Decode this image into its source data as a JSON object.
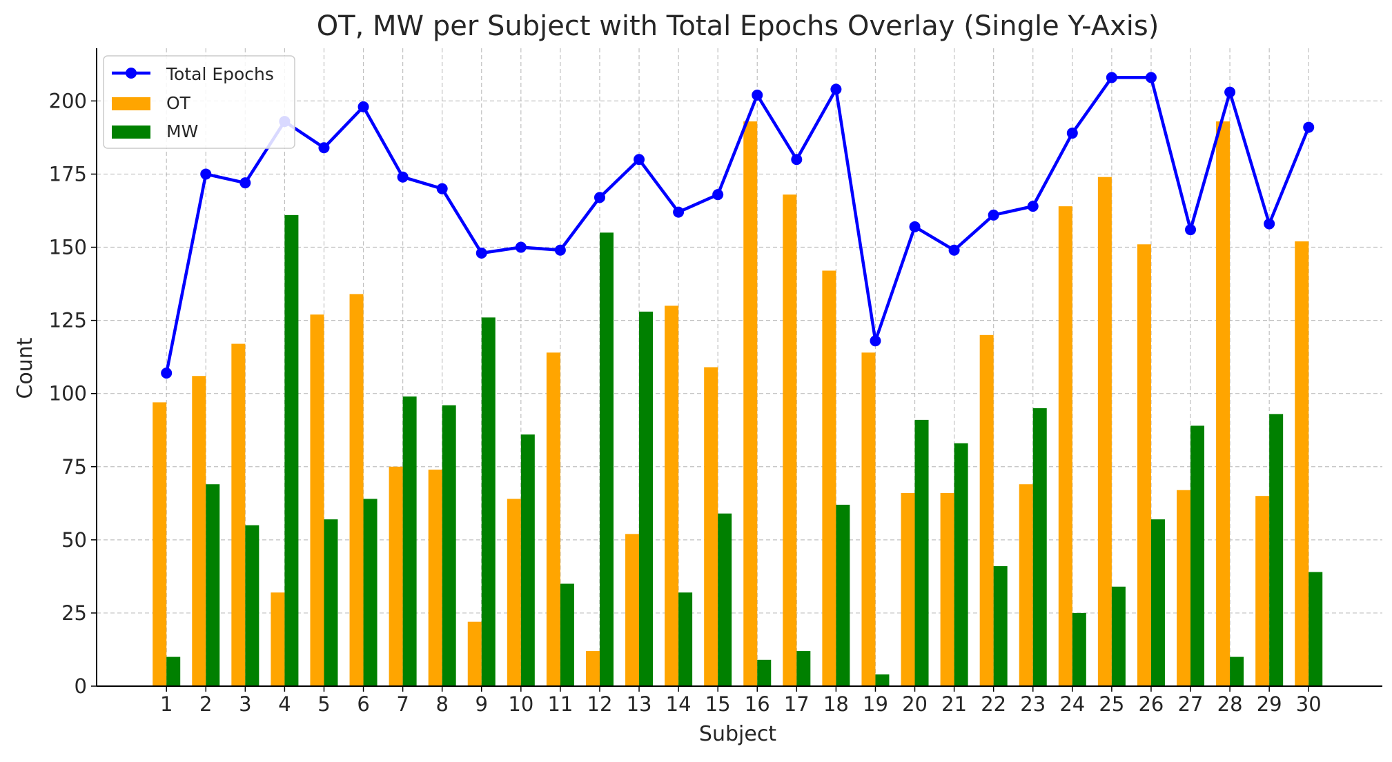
{
  "chart_data": {
    "type": "bar",
    "title": "OT, MW per Subject with Total Epochs Overlay (Single Y-Axis)",
    "xlabel": "Subject",
    "ylabel": "Count",
    "categories": [
      "1",
      "2",
      "3",
      "4",
      "5",
      "6",
      "7",
      "8",
      "9",
      "10",
      "11",
      "12",
      "13",
      "14",
      "15",
      "16",
      "17",
      "18",
      "19",
      "20",
      "21",
      "22",
      "23",
      "24",
      "25",
      "26",
      "27",
      "28",
      "29",
      "30"
    ],
    "ylim": [
      0,
      218
    ],
    "yticks": [
      0,
      25,
      50,
      75,
      100,
      125,
      150,
      175,
      200
    ],
    "grid": true,
    "legend_position": "top-left",
    "series": [
      {
        "name": "OT",
        "kind": "bar",
        "color": "#FFA500",
        "values": [
          97,
          106,
          117,
          32,
          127,
          134,
          75,
          74,
          22,
          64,
          114,
          12,
          52,
          130,
          109,
          193,
          168,
          142,
          114,
          66,
          66,
          120,
          69,
          164,
          174,
          151,
          67,
          193,
          65,
          152
        ]
      },
      {
        "name": "MW",
        "kind": "bar",
        "color": "#008000",
        "values": [
          10,
          69,
          55,
          161,
          57,
          64,
          99,
          96,
          126,
          86,
          35,
          155,
          128,
          32,
          59,
          9,
          12,
          62,
          4,
          91,
          83,
          41,
          95,
          25,
          34,
          57,
          89,
          10,
          93,
          39
        ]
      },
      {
        "name": "Total Epochs",
        "kind": "line",
        "color": "#0000FF",
        "values": [
          107,
          175,
          172,
          193,
          184,
          198,
          174,
          170,
          148,
          150,
          149,
          167,
          180,
          162,
          168,
          202,
          180,
          204,
          118,
          157,
          149,
          161,
          164,
          189,
          208,
          208,
          156,
          203,
          158,
          191
        ]
      }
    ]
  }
}
